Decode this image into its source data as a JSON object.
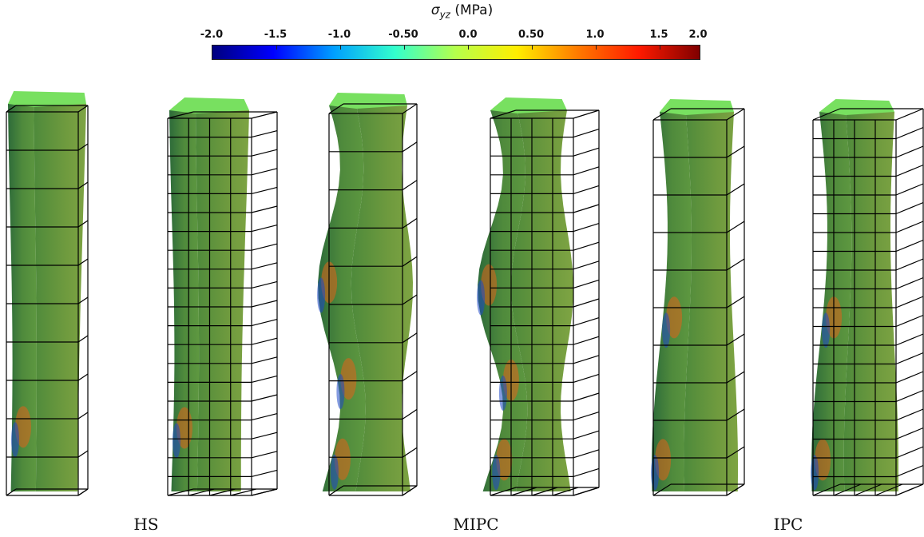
{
  "colorbar": {
    "symbol": "σ",
    "subscript": "yz",
    "unit": "(MPa)",
    "ticks": [
      "-2.0",
      "-1.5",
      "-1.0",
      "-0.50",
      "0.0",
      "0.50",
      "1.0",
      "1.5",
      "2.0"
    ],
    "range": [
      -2.0,
      2.0
    ],
    "colormap": [
      "#00007f",
      "#0000ff",
      "#00a0ff",
      "#33ffcc",
      "#b6ff4b",
      "#ffee00",
      "#ff7a00",
      "#ff1a00",
      "#7f0000"
    ]
  },
  "labels": {
    "hs": "HS",
    "mipc": "MIPC",
    "ipc": "IPC"
  },
  "colors": {
    "body": "#6aa84f",
    "top": "#78e060",
    "grid": "#000000"
  }
}
